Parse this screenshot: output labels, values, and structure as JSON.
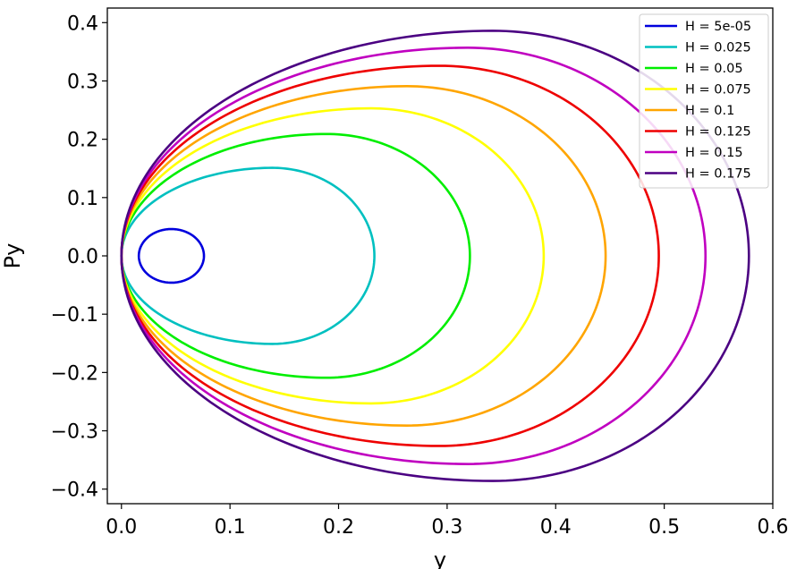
{
  "chart_data": {
    "type": "line",
    "title": "",
    "xlabel": "y",
    "ylabel": "Py",
    "xlim": [
      -0.013,
      0.6
    ],
    "ylim": [
      -0.425,
      0.425
    ],
    "xticks": [
      0.0,
      0.1,
      0.2,
      0.3,
      0.4,
      0.5,
      0.6
    ],
    "xtick_labels": [
      "0.0",
      "0.1",
      "0.2",
      "0.3",
      "0.4",
      "0.5",
      "0.6"
    ],
    "yticks": [
      -0.4,
      -0.3,
      -0.2,
      -0.1,
      0.0,
      0.1,
      0.2,
      0.3,
      0.4
    ],
    "ytick_labels": [
      "−0.4",
      "−0.3",
      "−0.2",
      "−0.1",
      "0.0",
      "0.1",
      "0.2",
      "0.3",
      "0.4"
    ],
    "grid": false,
    "legend_position": "top-right",
    "series": [
      {
        "name": "H = 5e-05",
        "color": "#0000dd",
        "y_min": 0.016,
        "y_max": 0.076,
        "y_at_peak": 0.046,
        "py_max": 0.046
      },
      {
        "name": "H = 0.025",
        "color": "#00c0c0",
        "y_min": 0.0,
        "y_max": 0.233,
        "y_at_peak": 0.139,
        "py_max": 0.151
      },
      {
        "name": "H = 0.05",
        "color": "#00ee00",
        "y_min": 0.0,
        "y_max": 0.321,
        "y_at_peak": 0.189,
        "py_max": 0.209
      },
      {
        "name": "H = 0.075",
        "color": "#ffff00",
        "y_min": 0.0,
        "y_max": 0.389,
        "y_at_peak": 0.23,
        "py_max": 0.253
      },
      {
        "name": "H = 0.1",
        "color": "#ffa500",
        "y_min": 0.0,
        "y_max": 0.446,
        "y_at_peak": 0.263,
        "py_max": 0.291
      },
      {
        "name": "H = 0.125",
        "color": "#ee0000",
        "y_min": 0.0,
        "y_max": 0.495,
        "y_at_peak": 0.293,
        "py_max": 0.326
      },
      {
        "name": "H = 0.15",
        "color": "#c000c0",
        "y_min": 0.0,
        "y_max": 0.538,
        "y_at_peak": 0.319,
        "py_max": 0.357
      },
      {
        "name": "H = 0.175",
        "color": "#4b0082",
        "y_min": 0.0,
        "y_max": 0.578,
        "y_at_peak": 0.342,
        "py_max": 0.386
      }
    ]
  }
}
